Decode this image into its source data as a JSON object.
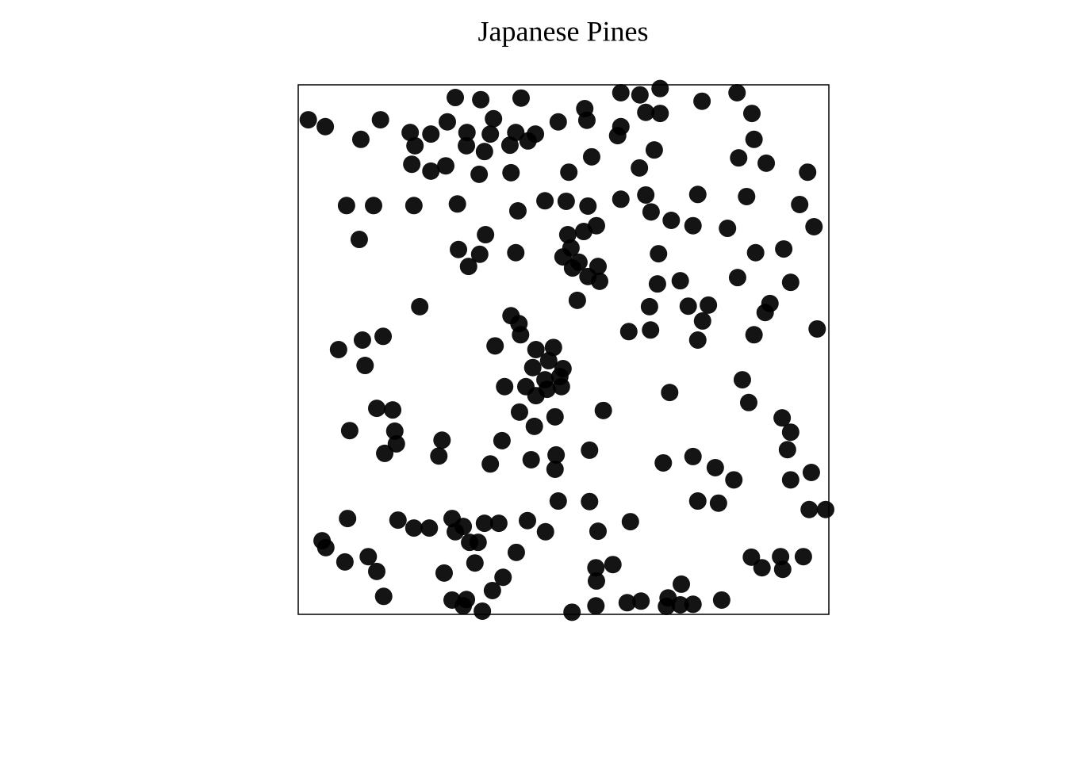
{
  "chart_data": {
    "type": "scatter",
    "title": "Japanese Pines",
    "xlim": [
      0,
      1
    ],
    "ylim": [
      0,
      1
    ],
    "color": "#000000",
    "x": [
      0.019,
      0.051,
      0.118,
      0.155,
      0.211,
      0.22,
      0.25,
      0.281,
      0.296,
      0.344,
      0.318,
      0.317,
      0.351,
      0.368,
      0.362,
      0.41,
      0.399,
      0.42,
      0.447,
      0.433,
      0.49,
      0.54,
      0.544,
      0.553,
      0.51,
      0.608,
      0.644,
      0.682,
      0.655,
      0.682,
      0.608,
      0.602,
      0.671,
      0.643,
      0.761,
      0.827,
      0.855,
      0.859,
      0.83,
      0.882,
      0.96,
      0.214,
      0.25,
      0.278,
      0.341,
      0.401,
      0.091,
      0.142,
      0.218,
      0.3,
      0.414,
      0.465,
      0.505,
      0.546,
      0.608,
      0.655,
      0.665,
      0.703,
      0.744,
      0.753,
      0.845,
      0.945,
      0.972,
      0.809,
      0.115,
      0.353,
      0.302,
      0.342,
      0.321,
      0.41,
      0.508,
      0.538,
      0.562,
      0.514,
      0.499,
      0.529,
      0.517,
      0.565,
      0.546,
      0.568,
      0.526,
      0.679,
      0.677,
      0.72,
      0.862,
      0.915,
      0.828,
      0.928,
      0.229,
      0.662,
      0.735,
      0.773,
      0.762,
      0.889,
      0.88,
      0.623,
      0.664,
      0.753,
      0.859,
      0.978,
      0.076,
      0.121,
      0.16,
      0.126,
      0.401,
      0.416,
      0.419,
      0.371,
      0.448,
      0.481,
      0.472,
      0.442,
      0.499,
      0.493,
      0.465,
      0.429,
      0.469,
      0.496,
      0.448,
      0.389,
      0.417,
      0.484,
      0.445,
      0.575,
      0.7,
      0.837,
      0.849,
      0.912,
      0.928,
      0.922,
      0.967,
      0.928,
      0.148,
      0.178,
      0.097,
      0.182,
      0.185,
      0.163,
      0.271,
      0.265,
      0.384,
      0.362,
      0.439,
      0.486,
      0.484,
      0.549,
      0.688,
      0.744,
      0.786,
      0.821,
      0.753,
      0.792,
      0.963,
      0.994,
      0.49,
      0.549,
      0.626,
      0.093,
      0.188,
      0.218,
      0.247,
      0.29,
      0.311,
      0.296,
      0.351,
      0.378,
      0.432,
      0.466,
      0.565,
      0.045,
      0.052,
      0.088,
      0.132,
      0.148,
      0.161,
      0.323,
      0.339,
      0.411,
      0.333,
      0.275,
      0.386,
      0.366,
      0.29,
      0.317,
      0.311,
      0.347,
      0.561,
      0.593,
      0.562,
      0.561,
      0.516,
      0.62,
      0.646,
      0.697,
      0.694,
      0.72,
      0.744,
      0.722,
      0.798,
      0.854,
      0.874,
      0.909,
      0.913,
      0.952
    ],
    "values": [
      0.934,
      0.921,
      0.897,
      0.934,
      0.91,
      0.885,
      0.907,
      0.93,
      0.976,
      0.972,
      0.91,
      0.885,
      0.874,
      0.936,
      0.907,
      0.91,
      0.886,
      0.975,
      0.907,
      0.894,
      0.93,
      0.955,
      0.933,
      0.864,
      0.835,
      0.985,
      0.981,
      0.993,
      0.948,
      0.946,
      0.921,
      0.904,
      0.877,
      0.843,
      0.969,
      0.985,
      0.946,
      0.897,
      0.862,
      0.852,
      0.835,
      0.85,
      0.837,
      0.847,
      0.831,
      0.834,
      0.772,
      0.772,
      0.772,
      0.775,
      0.762,
      0.781,
      0.78,
      0.771,
      0.784,
      0.792,
      0.76,
      0.744,
      0.734,
      0.793,
      0.789,
      0.774,
      0.732,
      0.729,
      0.708,
      0.717,
      0.689,
      0.68,
      0.657,
      0.683,
      0.717,
      0.723,
      0.734,
      0.692,
      0.675,
      0.665,
      0.654,
      0.657,
      0.638,
      0.629,
      0.593,
      0.681,
      0.624,
      0.63,
      0.683,
      0.69,
      0.636,
      0.627,
      0.581,
      0.581,
      0.582,
      0.584,
      0.554,
      0.587,
      0.57,
      0.534,
      0.537,
      0.518,
      0.528,
      0.539,
      0.5,
      0.518,
      0.525,
      0.47,
      0.564,
      0.549,
      0.528,
      0.507,
      0.5,
      0.504,
      0.479,
      0.466,
      0.464,
      0.449,
      0.443,
      0.43,
      0.425,
      0.43,
      0.413,
      0.43,
      0.382,
      0.373,
      0.355,
      0.385,
      0.419,
      0.443,
      0.4,
      0.371,
      0.344,
      0.311,
      0.268,
      0.254,
      0.389,
      0.386,
      0.347,
      0.346,
      0.322,
      0.304,
      0.329,
      0.299,
      0.328,
      0.284,
      0.292,
      0.301,
      0.274,
      0.31,
      0.286,
      0.298,
      0.277,
      0.254,
      0.214,
      0.21,
      0.198,
      0.198,
      0.214,
      0.213,
      0.175,
      0.181,
      0.178,
      0.163,
      0.163,
      0.181,
      0.166,
      0.156,
      0.172,
      0.172,
      0.177,
      0.156,
      0.157,
      0.139,
      0.126,
      0.099,
      0.109,
      0.081,
      0.034,
      0.136,
      0.136,
      0.117,
      0.097,
      0.078,
      0.07,
      0.045,
      0.027,
      0.028,
      0.016,
      0.006,
      0.088,
      0.094,
      0.063,
      0.016,
      0.004,
      0.022,
      0.025,
      0.031,
      0.015,
      0.018,
      0.019,
      0.057,
      0.027,
      0.108,
      0.088,
      0.109,
      0.085,
      0.109
    ]
  }
}
